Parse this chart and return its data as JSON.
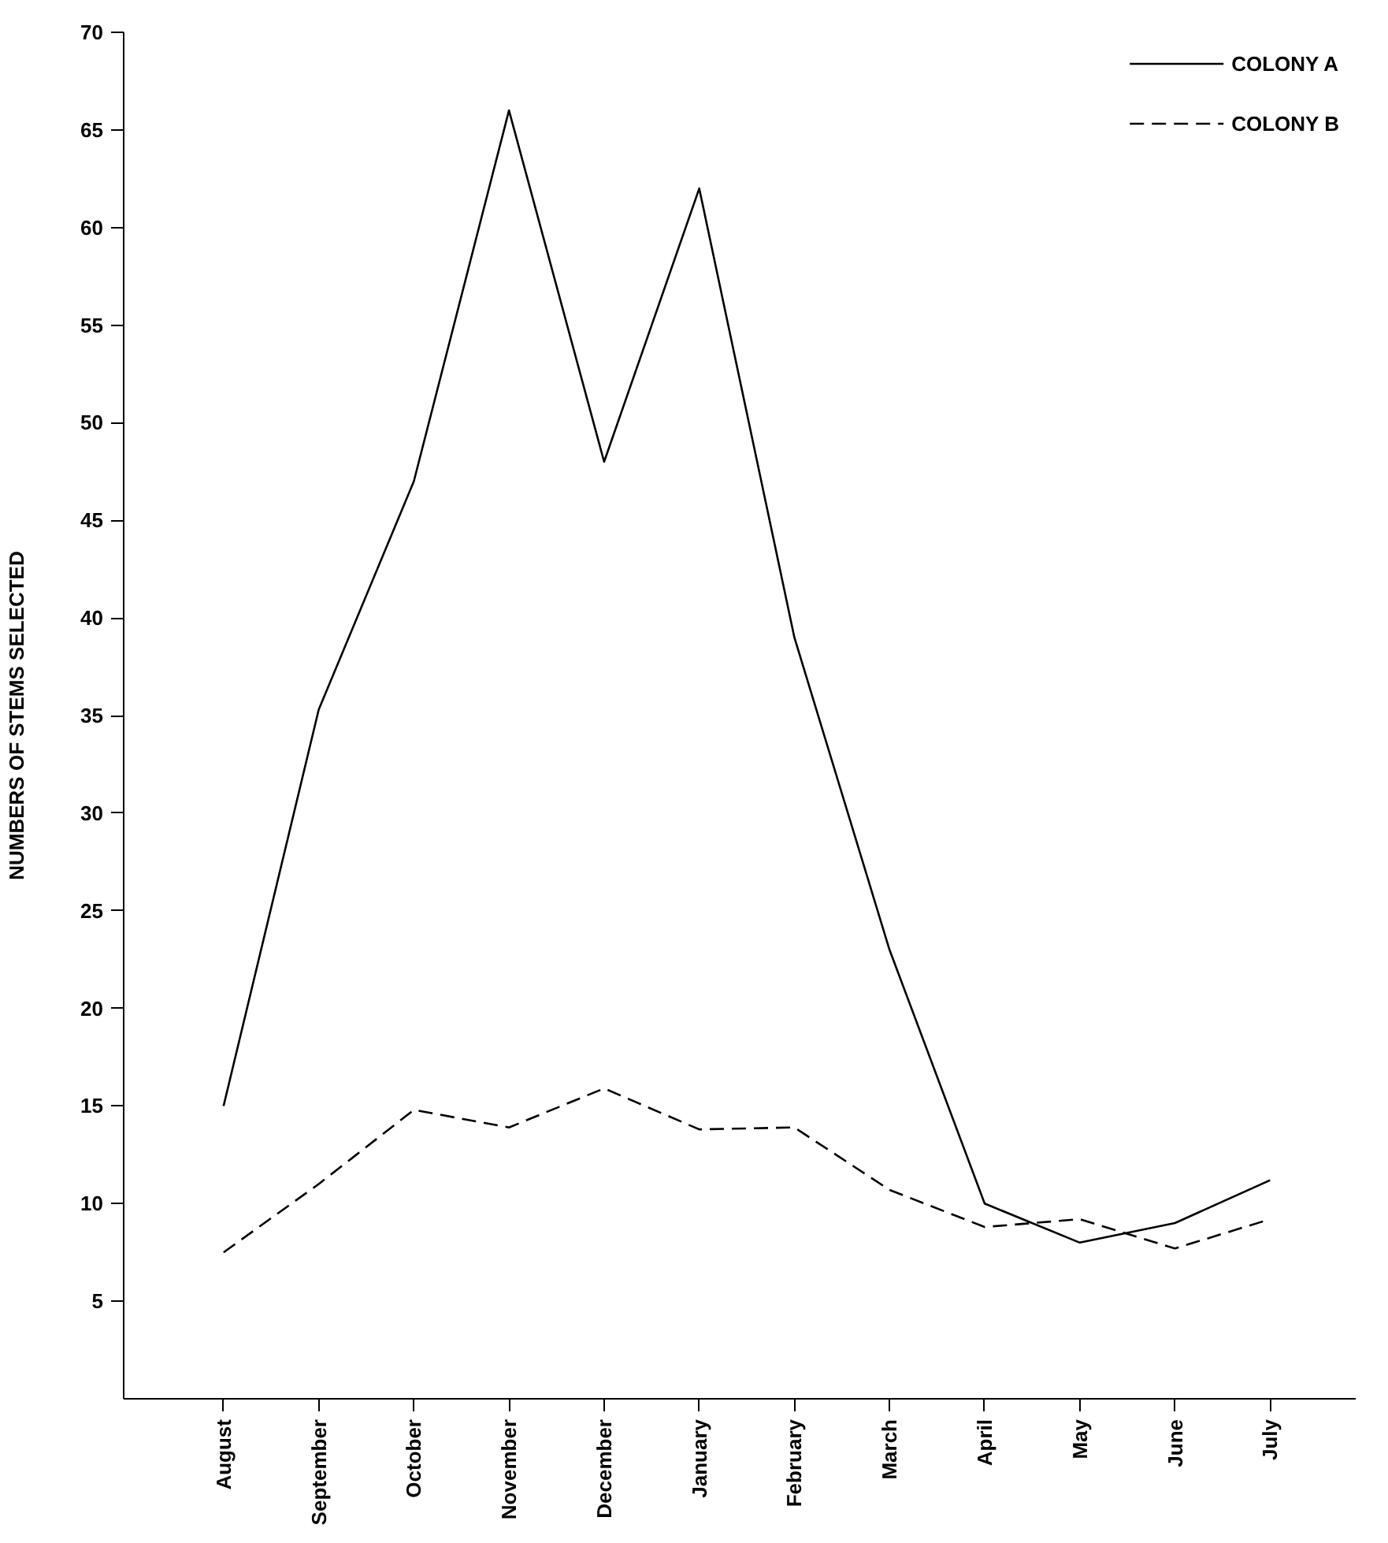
{
  "chart_data": {
    "type": "line",
    "ylabel": "NUMBERS OF STEMS SELECTED",
    "categories": [
      "August",
      "September",
      "October",
      "November",
      "December",
      "January",
      "February",
      "March",
      "April",
      "May",
      "June",
      "July"
    ],
    "series": [
      {
        "name": "COLONY A",
        "color": "#000000",
        "line_style": "solid",
        "values": [
          15,
          35.3,
          47,
          66,
          48,
          62,
          39,
          23,
          10,
          8,
          9,
          11.2
        ]
      },
      {
        "name": "COLONY B",
        "color": "#000000",
        "line_style": "dashed",
        "values": [
          7.5,
          11,
          14.8,
          13.9,
          15.9,
          13.8,
          13.9,
          10.7,
          8.8,
          9.2,
          7.7,
          9.2
        ]
      }
    ],
    "ylim": [
      0,
      70
    ],
    "yticks": [
      5,
      10,
      15,
      20,
      25,
      30,
      35,
      40,
      45,
      50,
      55,
      60,
      65,
      70
    ],
    "grid": false,
    "legend": "top right",
    "marker": "none"
  }
}
